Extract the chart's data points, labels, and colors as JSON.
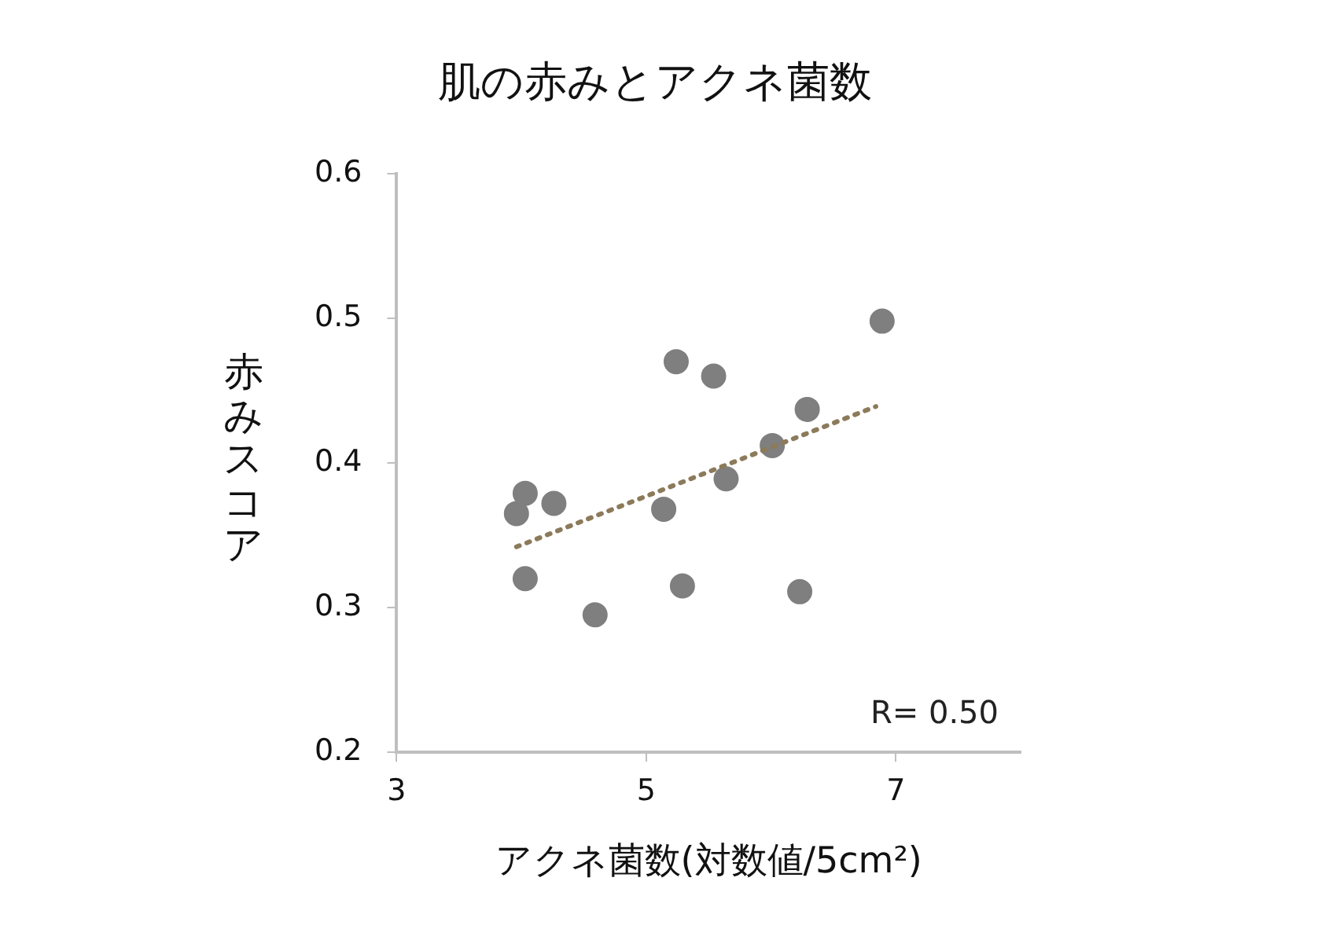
{
  "chart_data": {
    "type": "scatter",
    "title": "肌の赤みとアクネ菌数",
    "xlabel": "アクネ菌数(対数値/5cm²)",
    "ylabel": "赤みスコア",
    "xlim": [
      3,
      8
    ],
    "xticks": [
      3,
      5,
      7
    ],
    "ylim": [
      0.2,
      0.6
    ],
    "yticks": [
      0.2,
      0.3,
      0.4,
      0.5,
      0.6
    ],
    "grid": false,
    "legend": false,
    "marker": "circle",
    "annotations": [
      "R= 0.50"
    ],
    "series": [
      {
        "type": "scatter",
        "color": "#7f7f7f",
        "x": [
          3.96,
          4.03,
          4.03,
          4.26,
          4.59,
          5.14,
          5.24,
          5.29,
          5.54,
          5.64,
          6.01,
          6.23,
          6.29,
          6.89
        ],
        "values": [
          0.365,
          0.379,
          0.32,
          0.372,
          0.295,
          0.368,
          0.47,
          0.315,
          0.46,
          0.389,
          0.412,
          0.311,
          0.437,
          0.498
        ]
      },
      {
        "type": "line",
        "color": "#8c7a5a",
        "line_style": "dotted",
        "marker": "none",
        "x": [
          3.96,
          6.84
        ],
        "values": [
          0.342,
          0.439
        ]
      }
    ]
  }
}
